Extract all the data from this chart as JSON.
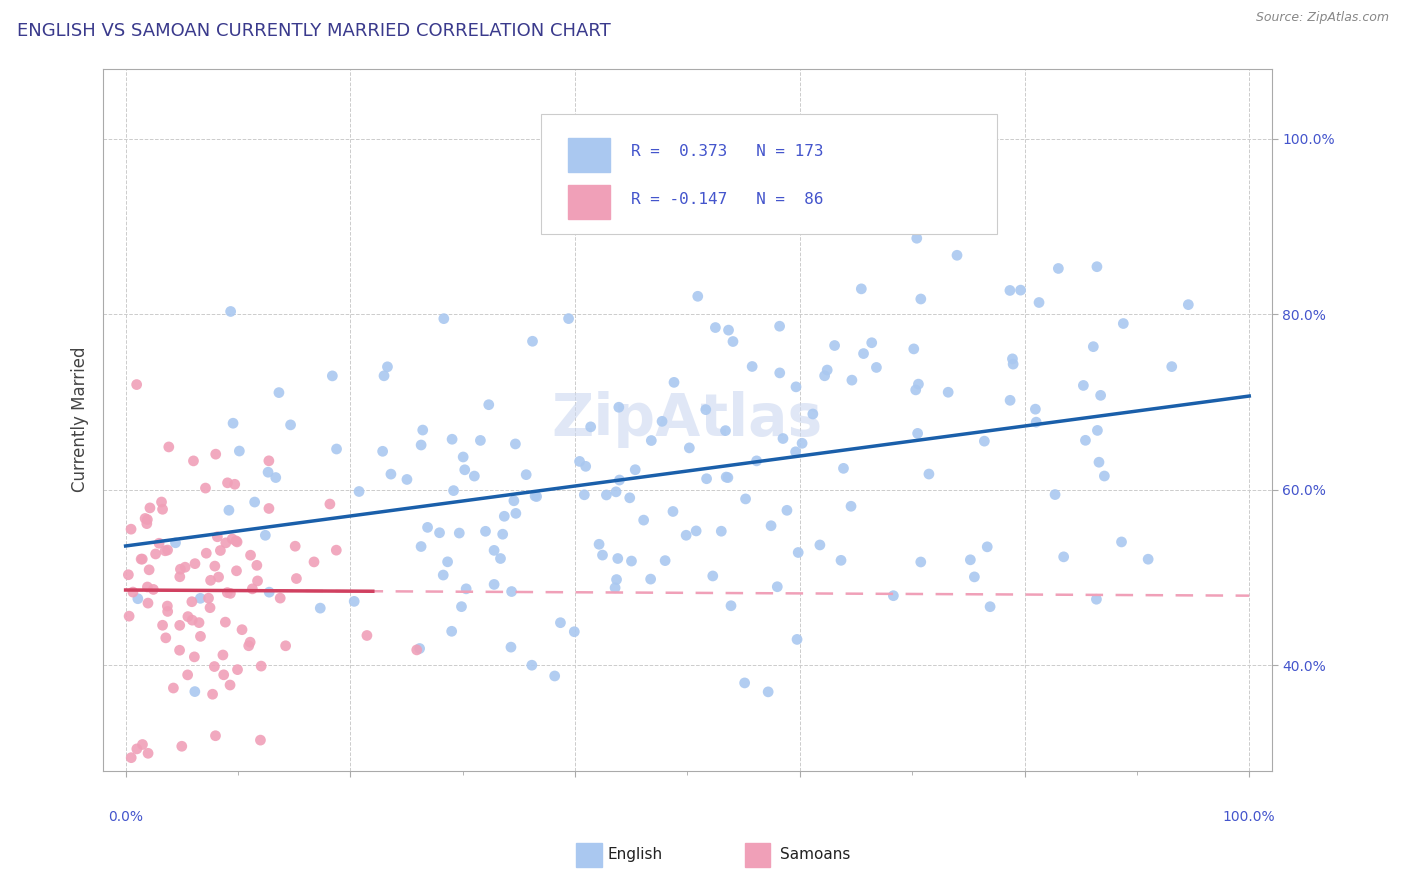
{
  "title": "ENGLISH VS SAMOAN CURRENTLY MARRIED CORRELATION CHART",
  "title_color": "#3a3a8c",
  "source_text": "Source: ZipAtlas.com",
  "ylabel": "Currently Married",
  "english_color": "#aac8f0",
  "english_line_color": "#1a5faa",
  "samoan_color": "#f0a0b8",
  "samoan_line_color": "#d04060",
  "samoan_trend_dash_color": "#f0a0b8",
  "r_english": 0.373,
  "n_english": 173,
  "r_samoan": -0.147,
  "n_samoan": 86,
  "background_color": "#ffffff",
  "grid_color": "#cccccc",
  "watermark_color": "#ccd8f0",
  "legend_text_color": "#4455cc",
  "xlim": [
    -0.02,
    1.02
  ],
  "ylim": [
    0.28,
    1.08
  ]
}
